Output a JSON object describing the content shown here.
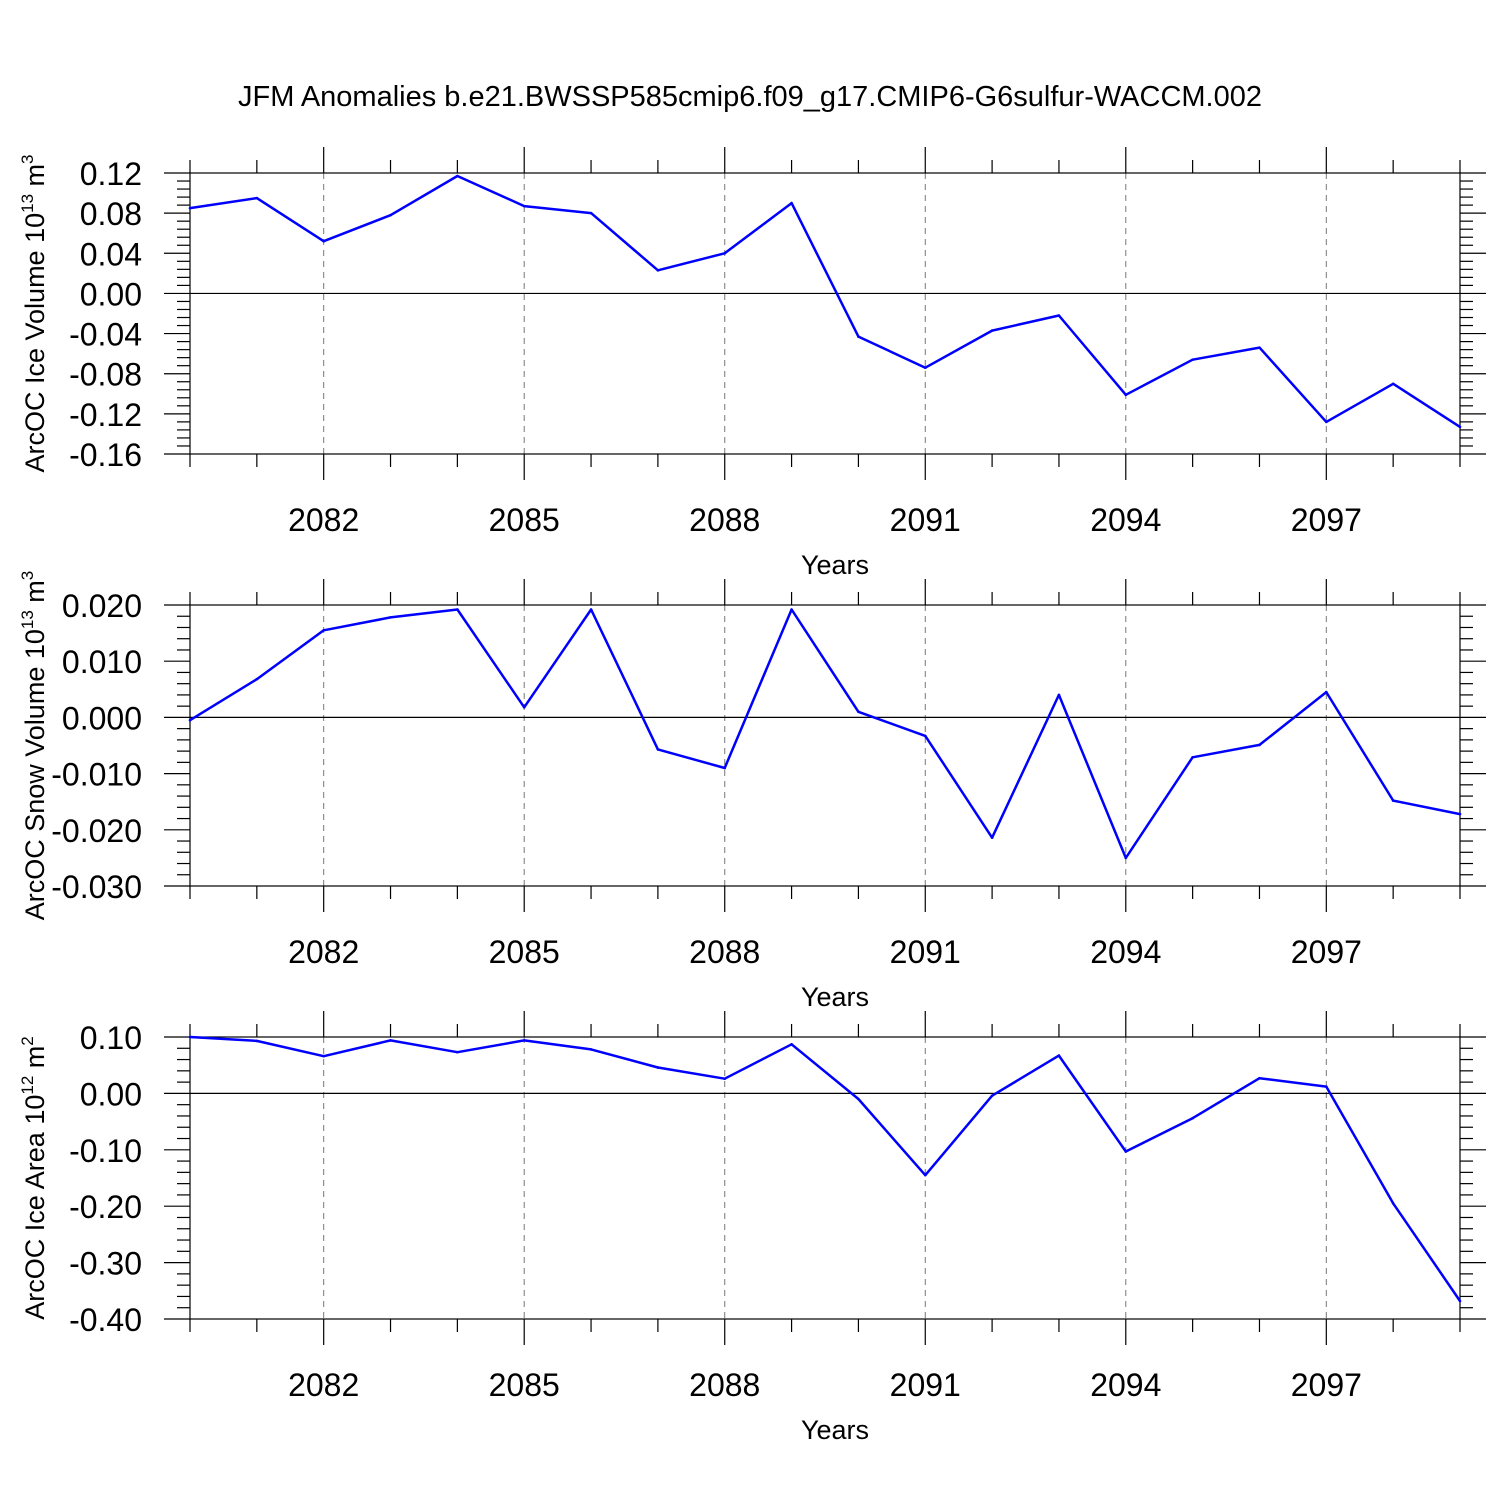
{
  "chart_data": {
    "title": "JFM Anomalies b.e21.BWSSP585cmip6.f09_g17.CMIP6-G6sulfur-WACCM.002",
    "line_color": "#0000ff",
    "x": [
      2080,
      2081,
      2082,
      2083,
      2084,
      2085,
      2086,
      2087,
      2088,
      2089,
      2090,
      2091,
      2092,
      2093,
      2094,
      2095,
      2096,
      2097,
      2098,
      2099
    ],
    "xticks": [
      2082,
      2085,
      2088,
      2091,
      2094,
      2097
    ],
    "xlim": [
      2080,
      2099
    ],
    "panels": [
      {
        "type": "line",
        "ylabel_main": "ArcOC Ice Volume 10",
        "ylabel_exp": "13",
        "ylabel_unit": " m",
        "ylabel_unit_exp": "3",
        "xlabel": "Years",
        "ylim": [
          -0.16,
          0.12
        ],
        "yticks": [
          0.12,
          0.08,
          0.04,
          0.0,
          -0.04,
          -0.08,
          -0.12,
          -0.16
        ],
        "ytick_labels": [
          "0.12",
          "0.08",
          "0.04",
          "0.00",
          "-0.04",
          "-0.08",
          "-0.12",
          "-0.16"
        ],
        "values": [
          0.085,
          0.095,
          0.052,
          0.078,
          0.117,
          0.087,
          0.08,
          0.023,
          0.04,
          0.09,
          -0.043,
          -0.074,
          -0.037,
          -0.022,
          -0.101,
          -0.066,
          -0.054,
          -0.128,
          -0.09,
          -0.133
        ]
      },
      {
        "type": "line",
        "ylabel_main": "ArcOC Snow Volume 10",
        "ylabel_exp": "13",
        "ylabel_unit": " m",
        "ylabel_unit_exp": "3",
        "xlabel": "Years",
        "ylim": [
          -0.03,
          0.02
        ],
        "yticks": [
          0.02,
          0.01,
          0.0,
          -0.01,
          -0.02,
          -0.03
        ],
        "ytick_labels": [
          "0.020",
          "0.010",
          "0.000",
          "-0.010",
          "-0.020",
          "-0.030"
        ],
        "values": [
          -0.0005,
          0.0068,
          0.0155,
          0.0178,
          0.0192,
          0.0018,
          0.0192,
          -0.0057,
          -0.009,
          0.0192,
          0.001,
          -0.0033,
          -0.0214,
          0.004,
          -0.025,
          -0.0071,
          -0.0049,
          0.0045,
          -0.0148,
          -0.0172
        ]
      },
      {
        "type": "line",
        "ylabel_main": "ArcOC Ice Area 10",
        "ylabel_exp": "12",
        "ylabel_unit": " m",
        "ylabel_unit_exp": "2",
        "xlabel": "Years",
        "ylim": [
          -0.4,
          0.1
        ],
        "yticks": [
          0.1,
          0.0,
          -0.1,
          -0.2,
          -0.3,
          -0.4
        ],
        "ytick_labels": [
          "0.10",
          "0.00",
          "-0.10",
          "-0.20",
          "-0.30",
          "-0.40"
        ],
        "values": [
          0.1,
          0.093,
          0.066,
          0.094,
          0.073,
          0.094,
          0.078,
          0.046,
          0.026,
          0.087,
          -0.01,
          -0.145,
          -0.004,
          0.067,
          -0.103,
          -0.044,
          0.027,
          0.012,
          -0.195,
          -0.368
        ]
      }
    ]
  }
}
